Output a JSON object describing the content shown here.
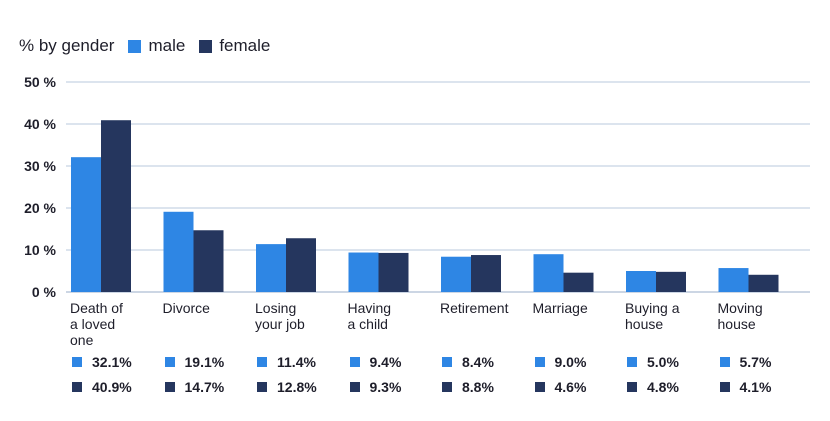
{
  "legend": {
    "title": "% by gender",
    "items": [
      {
        "label": "male",
        "color": "#2e86e4"
      },
      {
        "label": "female",
        "color": "#25365e"
      }
    ]
  },
  "chart_data": {
    "type": "bar",
    "title": "",
    "xlabel": "",
    "ylabel": "% by gender",
    "ylim": [
      0,
      50
    ],
    "yticks": [
      "0 %",
      "10 %",
      "20 %",
      "30 %",
      "40 %",
      "50 %"
    ],
    "grid": true,
    "legend_placement": "top-left",
    "categories": [
      [
        "Death of",
        "a loved",
        "one"
      ],
      [
        "Divorce"
      ],
      [
        "Losing",
        "your job"
      ],
      [
        "Having",
        "a child"
      ],
      [
        "Retirement"
      ],
      [
        "Marriage"
      ],
      [
        "Buying a",
        "house"
      ],
      [
        "Moving",
        "house"
      ]
    ],
    "series": [
      {
        "name": "male",
        "color": "#2e86e4",
        "values": [
          32.1,
          19.1,
          11.4,
          9.4,
          8.4,
          9.0,
          5.0,
          5.7
        ],
        "labels": [
          "32.1%",
          "19.1%",
          "11.4%",
          "9.4%",
          "8.4%",
          "9.0%",
          "5.0%",
          "5.7%"
        ]
      },
      {
        "name": "female",
        "color": "#25365e",
        "values": [
          40.9,
          14.7,
          12.8,
          9.3,
          8.8,
          4.6,
          4.8,
          4.1
        ],
        "labels": [
          "40.9%",
          "14.7%",
          "12.8%",
          "9.3%",
          "8.8%",
          "4.6%",
          "4.8%",
          "4.1%"
        ]
      }
    ]
  }
}
